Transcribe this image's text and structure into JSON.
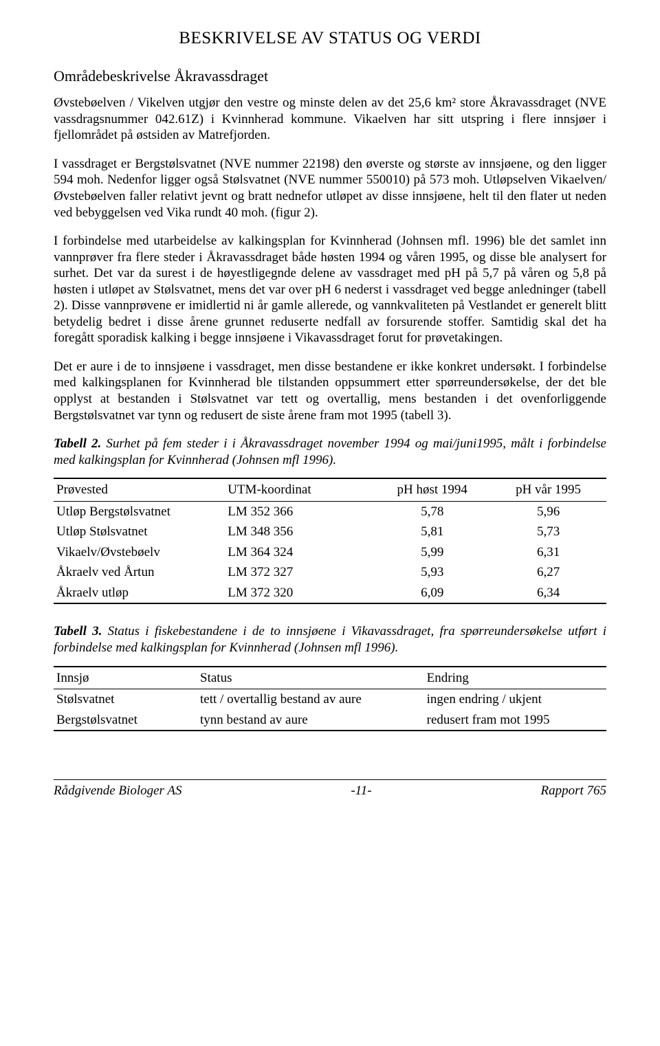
{
  "colors": {
    "text": "#000000",
    "background": "#ffffff",
    "rule": "#000000"
  },
  "typography": {
    "family": "Times New Roman",
    "body_size_pt": 14,
    "title_size_pt": 19,
    "section_size_pt": 16
  },
  "title": "BESKRIVELSE AV STATUS OG VERDI",
  "section_heading": "Områdebeskrivelse Åkravassdraget",
  "paragraphs": {
    "p1": "Øvstebøelven / Vikelven utgjør den vestre og minste delen av det 25,6 km² store Åkravassdraget (NVE vassdragsnummer 042.61Z) i Kvinnherad kommune. Vikaelven har sitt utspring i flere innsjøer i fjellområdet på østsiden av Matrefjorden.",
    "p2": "I vassdraget er Bergstølsvatnet (NVE nummer 22198) den øverste og største av innsjøene, og den ligger 594 moh. Nedenfor ligger også Stølsvatnet (NVE nummer 550010) på 573 moh. Utløpselven Vikaelven/ Øvstebøelven faller relativt jevnt og bratt nednefor utløpet av disse innsjøene, helt til den flater ut neden ved bebyggelsen ved Vika rundt 40 moh. (figur 2).",
    "p3": "I forbindelse med utarbeidelse av kalkingsplan for Kvinnherad (Johnsen mfl. 1996) ble det samlet inn vannprøver fra flere steder i Åkravassdraget både høsten 1994 og våren 1995, og disse ble analysert for surhet. Det var da surest i de høyestligegnde delene av vassdraget med pH på 5,7 på våren og 5,8 på høsten i utløpet av Stølsvatnet, mens det var over pH 6 nederst i vassdraget ved begge anledninger (tabell 2). Disse vannprøvene er imidlertid ni år gamle allerede, og vannkvaliteten på Vestlandet er generelt blitt betydelig bedret i disse årene grunnet reduserte nedfall av forsurende stoffer. Samtidig skal det ha foregått sporadisk kalking i begge innsjøene i Vikavassdraget forut for prøvetakingen.",
    "p4": "Det er aure i de to innsjøene i vassdraget, men disse bestandene er ikke konkret undersøkt. I forbindelse med kalkingsplanen for Kvinnherad ble tilstanden oppsummert etter spørreundersøkelse, der det ble opplyst at bestanden i Stølsvatnet var tett og overtallig, mens bestanden i det ovenforliggende Bergstølsvatnet var tynn og redusert de siste årene fram mot 1995 (tabell 3)."
  },
  "table2": {
    "type": "table",
    "caption_lead": "Tabell 2.",
    "caption_rest": " Surhet på fem steder i i Åkravassdraget november 1994 og mai/juni1995, målt i forbindelse med kalkingsplan for Kvinnherad (Johnsen mfl 1996).",
    "columns": [
      "Prøvested",
      "UTM-koordinat",
      "pH høst 1994",
      "pH vår 1995"
    ],
    "col_widths_pct": [
      31,
      27,
      21,
      21
    ],
    "col_align": [
      "left",
      "left",
      "center",
      "center"
    ],
    "rows": [
      [
        "Utløp Bergstølsvatnet",
        "LM 352 366",
        "5,78",
        "5,96"
      ],
      [
        "Utløp Stølsvatnet",
        "LM 348 356",
        "5,81",
        "5,73"
      ],
      [
        "Vikaelv/Øvstebøelv",
        "LM 364 324",
        "5,99",
        "6,31"
      ],
      [
        "Åkraelv ved Årtun",
        "LM 372 327",
        "5,93",
        "6,27"
      ],
      [
        "Åkraelv utløp",
        "LM 372 320",
        "6,09",
        "6,34"
      ]
    ],
    "border_color": "#000000",
    "font_size_pt": 14
  },
  "table3": {
    "type": "table",
    "caption_lead": "Tabell 3.",
    "caption_rest": " Status i fiskebestandene i de to innsjøene i Vikavassdraget, fra spørreundersøkelse utført i forbindelse med kalkingsplan for Kvinnherad (Johnsen mfl 1996).",
    "columns": [
      "Innsjø",
      "Status",
      "Endring"
    ],
    "col_widths_pct": [
      26,
      41,
      33
    ],
    "col_align": [
      "left",
      "left",
      "left"
    ],
    "rows": [
      [
        "Stølsvatnet",
        "tett / overtallig bestand av aure",
        "ingen endring / ukjent"
      ],
      [
        "Bergstølsvatnet",
        "tynn bestand av aure",
        "redusert fram mot 1995"
      ]
    ],
    "border_color": "#000000",
    "font_size_pt": 14
  },
  "footer": {
    "left": "Rådgivende Biologer AS",
    "center": "-11-",
    "right": "Rapport 765"
  }
}
